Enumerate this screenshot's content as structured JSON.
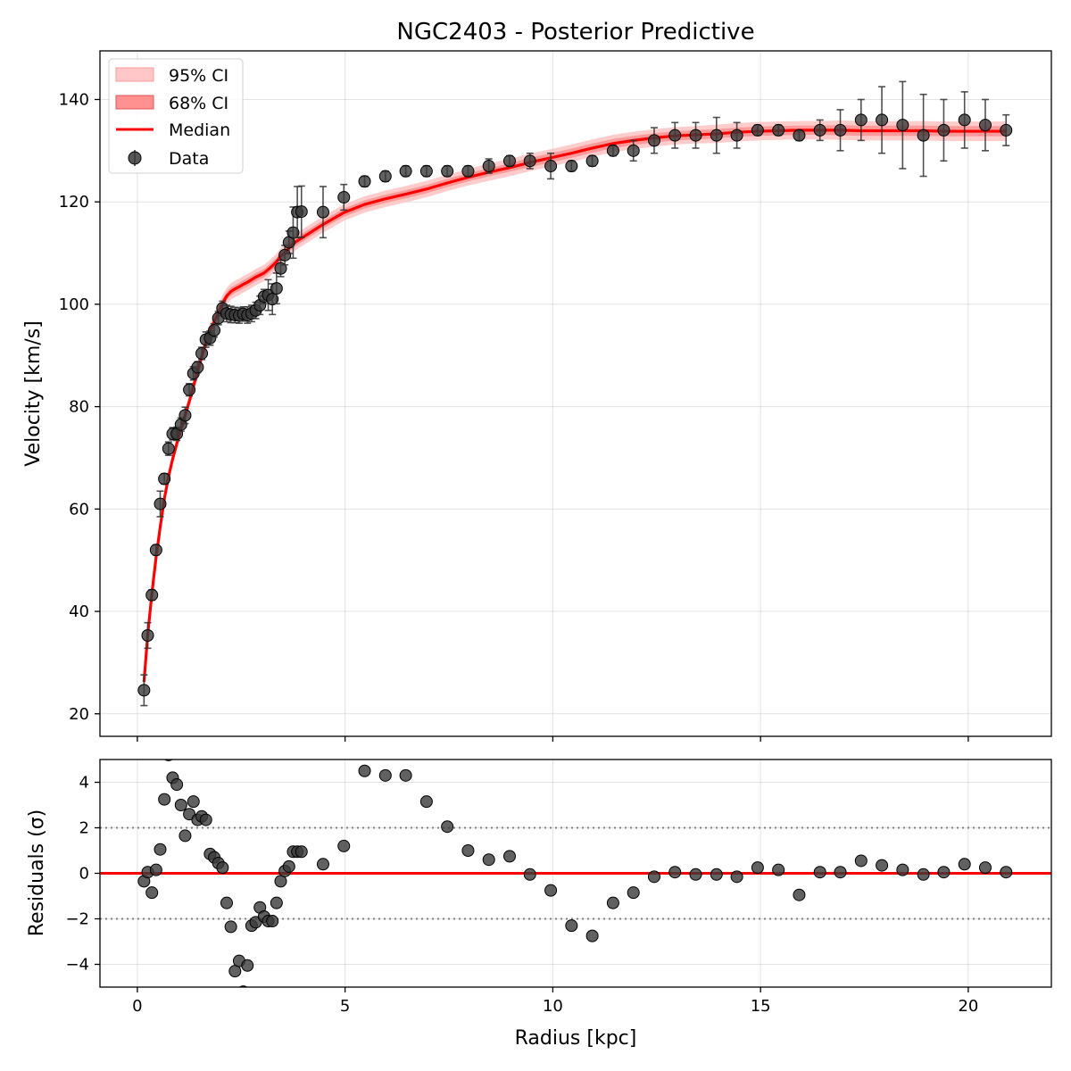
{
  "chart_data": [
    {
      "type": "line",
      "title": "NGC2403 - Posterior Predictive",
      "xlabel": "",
      "ylabel": "Velocity [km/s]",
      "xlim": [
        -0.9,
        22.0
      ],
      "ylim": [
        15.6,
        149.5
      ],
      "x_ticks": [
        0,
        5,
        10,
        15,
        20
      ],
      "y_ticks": [
        20,
        40,
        60,
        80,
        100,
        120,
        140
      ],
      "y_tick_labels": [
        "20",
        "40",
        "60",
        "80",
        "100",
        "120",
        "140"
      ],
      "grid": true,
      "legend_position": "upper-left",
      "legend": [
        "95% CI",
        "68% CI",
        "Median",
        "Data"
      ],
      "colors": {
        "median": "#ff0000",
        "ci95": "#ffc7c7",
        "ci68": "#ff9191",
        "data": "#3a3a3a"
      },
      "series": [
        {
          "name": "Median",
          "kind": "line",
          "x": [
            0.16,
            0.25,
            0.35,
            0.45,
            0.55,
            0.65,
            0.75,
            0.85,
            0.95,
            1.05,
            1.15,
            1.25,
            1.35,
            1.45,
            1.55,
            1.65,
            1.75,
            1.85,
            1.95,
            2.05,
            2.15,
            2.25,
            2.35,
            2.45,
            2.55,
            2.65,
            2.75,
            2.85,
            2.95,
            3.05,
            3.15,
            3.25,
            3.35,
            3.45,
            3.55,
            3.65,
            3.75,
            3.85,
            3.95,
            4.47,
            4.97,
            5.47,
            5.97,
            6.46,
            6.96,
            7.46,
            7.96,
            8.46,
            8.96,
            9.45,
            9.95,
            10.45,
            10.95,
            11.45,
            11.94,
            12.44,
            12.94,
            13.44,
            13.94,
            14.43,
            14.93,
            15.43,
            15.93,
            16.43,
            16.92,
            17.42,
            17.92,
            18.42,
            18.92,
            19.41,
            19.91,
            20.41,
            20.91
          ],
          "y": [
            26.2,
            35.5,
            43.5,
            50.5,
            56.5,
            62.0,
            66.3,
            69.8,
            72.8,
            75.5,
            78.3,
            81.0,
            84.0,
            86.8,
            89.8,
            92.5,
            94.8,
            96.6,
            98.3,
            100.2,
            101.6,
            102.5,
            103.0,
            103.4,
            103.9,
            104.3,
            104.8,
            105.3,
            105.7,
            106.1,
            106.8,
            107.5,
            108.3,
            109.4,
            110.1,
            111.0,
            111.8,
            112.4,
            112.9,
            115.6,
            117.9,
            119.5,
            120.6,
            121.5,
            122.5,
            123.7,
            124.8,
            125.8,
            126.7,
            127.7,
            128.6,
            129.5,
            130.5,
            131.4,
            132.0,
            132.5,
            132.9,
            133.1,
            133.3,
            133.6,
            133.8,
            133.9,
            134.0,
            134.0,
            134.0,
            133.9,
            133.9,
            133.9,
            133.9,
            133.8,
            133.8,
            133.8,
            133.8
          ]
        },
        {
          "name": "68% CI",
          "kind": "band",
          "halfwidth": [
            0.4,
            0.5,
            0.5,
            0.5,
            0.6,
            0.6,
            0.6,
            0.6,
            0.6,
            0.6,
            0.6,
            0.6,
            0.6,
            0.6,
            0.6,
            0.7,
            0.7,
            0.7,
            0.7,
            0.8,
            0.8,
            0.8,
            0.8,
            0.8,
            0.8,
            0.8,
            0.8,
            0.8,
            0.8,
            0.8,
            0.8,
            0.8,
            0.8,
            0.8,
            0.8,
            0.8,
            0.8,
            0.8,
            0.8,
            0.8,
            0.8,
            0.8,
            0.8,
            0.8,
            0.8,
            0.8,
            0.8,
            0.8,
            0.8,
            0.9,
            0.9,
            0.9,
            0.9,
            0.9,
            0.9,
            0.9,
            0.9,
            0.9,
            0.9,
            0.9,
            0.9,
            0.9,
            0.9,
            0.9,
            1.0,
            1.0,
            1.0,
            1.0,
            1.0,
            1.0,
            1.0,
            1.0,
            1.0
          ]
        },
        {
          "name": "95% CI",
          "kind": "band",
          "halfwidth": [
            0.9,
            1.0,
            1.0,
            1.1,
            1.1,
            1.2,
            1.2,
            1.2,
            1.2,
            1.3,
            1.3,
            1.3,
            1.3,
            1.4,
            1.4,
            1.4,
            1.5,
            1.5,
            1.5,
            1.6,
            1.6,
            1.6,
            1.6,
            1.6,
            1.6,
            1.6,
            1.6,
            1.6,
            1.6,
            1.6,
            1.6,
            1.6,
            1.6,
            1.6,
            1.6,
            1.6,
            1.6,
            1.6,
            1.6,
            1.6,
            1.6,
            1.6,
            1.6,
            1.6,
            1.6,
            1.6,
            1.6,
            1.7,
            1.7,
            1.7,
            1.7,
            1.7,
            1.7,
            1.7,
            1.7,
            1.7,
            1.7,
            1.7,
            1.8,
            1.8,
            1.8,
            1.8,
            1.8,
            1.8,
            1.9,
            1.9,
            1.9,
            1.9,
            1.9,
            1.9,
            1.9,
            1.9,
            1.9
          ]
        },
        {
          "name": "Data",
          "kind": "scatter",
          "x": [
            0.16,
            0.25,
            0.35,
            0.45,
            0.55,
            0.65,
            0.75,
            0.85,
            0.95,
            1.05,
            1.15,
            1.25,
            1.35,
            1.45,
            1.55,
            1.65,
            1.75,
            1.85,
            1.95,
            2.05,
            2.15,
            2.25,
            2.35,
            2.45,
            2.55,
            2.65,
            2.75,
            2.85,
            2.95,
            3.05,
            3.15,
            3.25,
            3.35,
            3.45,
            3.55,
            3.65,
            3.75,
            3.85,
            3.95,
            4.47,
            4.97,
            5.47,
            5.97,
            6.46,
            6.96,
            7.46,
            7.96,
            8.46,
            8.96,
            9.45,
            9.95,
            10.45,
            10.95,
            11.45,
            11.94,
            12.44,
            12.94,
            13.44,
            13.94,
            14.43,
            14.93,
            15.43,
            15.93,
            16.43,
            16.92,
            17.42,
            17.92,
            18.42,
            18.92,
            19.41,
            19.91,
            20.41,
            20.91
          ],
          "y": [
            24.6,
            35.3,
            43.2,
            52.0,
            61.0,
            65.9,
            71.8,
            74.7,
            74.7,
            76.5,
            78.3,
            83.3,
            86.5,
            87.7,
            90.4,
            93.1,
            93.4,
            94.9,
            97.3,
            99.2,
            98.2,
            98.0,
            97.9,
            97.8,
            98.1,
            97.9,
            98.2,
            98.8,
            99.8,
            101.5,
            101.8,
            101.0,
            103.1,
            107.0,
            109.6,
            112.1,
            114.0,
            118.0,
            118.1,
            118.0,
            120.9,
            124.0,
            125.0,
            126.0,
            126.0,
            126.0,
            126.0,
            127.0,
            128.0,
            128.0,
            127.0,
            127.0,
            128.0,
            130.0,
            130.0,
            132.0,
            133.0,
            133.0,
            133.0,
            133.0,
            134.0,
            134.0,
            133.0,
            134.0,
            134.0,
            136.0,
            136.0,
            135.0,
            133.0,
            134.0,
            136.0,
            135.0,
            134.0
          ],
          "err": [
            3.0,
            2.5,
            1.0,
            1.0,
            2.5,
            1.0,
            1.3,
            1.2,
            1.3,
            1.3,
            1.6,
            1.2,
            1.3,
            1.1,
            1.2,
            1.5,
            1.4,
            1.3,
            1.3,
            1.4,
            1.6,
            1.6,
            1.5,
            1.5,
            1.4,
            1.6,
            1.6,
            1.6,
            1.8,
            1.4,
            3.0,
            3.0,
            3.0,
            1.6,
            1.9,
            2.2,
            5.0,
            5.0,
            5.0,
            5.0,
            2.5,
            1.0,
            1.0,
            1.0,
            1.0,
            1.0,
            1.0,
            1.4,
            1.0,
            1.5,
            2.5,
            1.0,
            1.0,
            1.0,
            2.0,
            2.5,
            2.5,
            2.5,
            3.5,
            2.5,
            1.0,
            1.0,
            1.0,
            2.0,
            4.0,
            4.0,
            6.5,
            8.5,
            8.0,
            6.0,
            5.5,
            5.0,
            3.0
          ]
        }
      ]
    },
    {
      "type": "scatter",
      "title": "",
      "xlabel": "Radius [kpc]",
      "ylabel": "Residuals (σ)",
      "xlim": [
        -0.9,
        22.0
      ],
      "ylim": [
        -5.0,
        5.0
      ],
      "x_ticks": [
        0,
        5,
        10,
        15,
        20
      ],
      "x_tick_labels": [
        "0",
        "5",
        "10",
        "15",
        "20"
      ],
      "y_ticks": [
        -4,
        -2,
        0,
        2,
        4
      ],
      "y_tick_labels": [
        "−4",
        "−2",
        "0",
        "2",
        "4"
      ],
      "grid": true,
      "reference_lines": [
        {
          "y": 0,
          "style": "solid",
          "color": "#ff0000"
        },
        {
          "y": 2,
          "style": "dotted",
          "color": "#7f7f7f"
        },
        {
          "y": -2,
          "style": "dotted",
          "color": "#7f7f7f"
        }
      ],
      "series": [
        {
          "kind": "scatter",
          "x": [
            0.16,
            0.25,
            0.35,
            0.45,
            0.55,
            0.65,
            0.75,
            0.85,
            0.95,
            1.05,
            1.15,
            1.25,
            1.35,
            1.45,
            1.55,
            1.65,
            1.75,
            1.85,
            1.95,
            2.05,
            2.15,
            2.25,
            2.35,
            2.45,
            2.55,
            2.65,
            2.75,
            2.85,
            2.95,
            3.05,
            3.15,
            3.25,
            3.35,
            3.45,
            3.55,
            3.65,
            3.75,
            3.85,
            3.95,
            4.47,
            4.97,
            5.47,
            5.97,
            6.46,
            6.96,
            7.46,
            7.96,
            8.46,
            8.96,
            9.45,
            9.95,
            10.45,
            10.95,
            11.45,
            11.94,
            12.44,
            12.94,
            13.44,
            13.94,
            14.43,
            14.93,
            15.43,
            15.93,
            16.43,
            16.92,
            17.42,
            17.92,
            18.42,
            18.92,
            19.41,
            19.91,
            20.41,
            20.91
          ],
          "y": [
            -0.35,
            0.05,
            -0.85,
            0.15,
            1.05,
            3.25,
            5.2,
            4.2,
            3.9,
            3.0,
            1.65,
            2.6,
            3.15,
            2.35,
            2.5,
            2.35,
            0.85,
            0.7,
            0.45,
            0.25,
            -1.3,
            -2.35,
            -4.3,
            -3.85,
            -5.2,
            -4.05,
            -2.3,
            -2.15,
            -1.5,
            -1.9,
            -2.1,
            -2.1,
            -1.3,
            -0.35,
            0.1,
            0.3,
            0.95,
            0.95,
            0.95,
            0.4,
            1.2,
            4.5,
            4.3,
            4.3,
            3.15,
            2.05,
            1.0,
            0.6,
            0.75,
            -0.05,
            -0.75,
            -2.3,
            -2.75,
            -1.3,
            -0.85,
            -0.15,
            0.05,
            -0.05,
            -0.05,
            -0.15,
            0.25,
            0.15,
            -0.95,
            0.05,
            0.05,
            0.55,
            0.35,
            0.15,
            -0.05,
            0.05,
            0.4,
            0.25,
            0.05
          ]
        }
      ]
    }
  ]
}
